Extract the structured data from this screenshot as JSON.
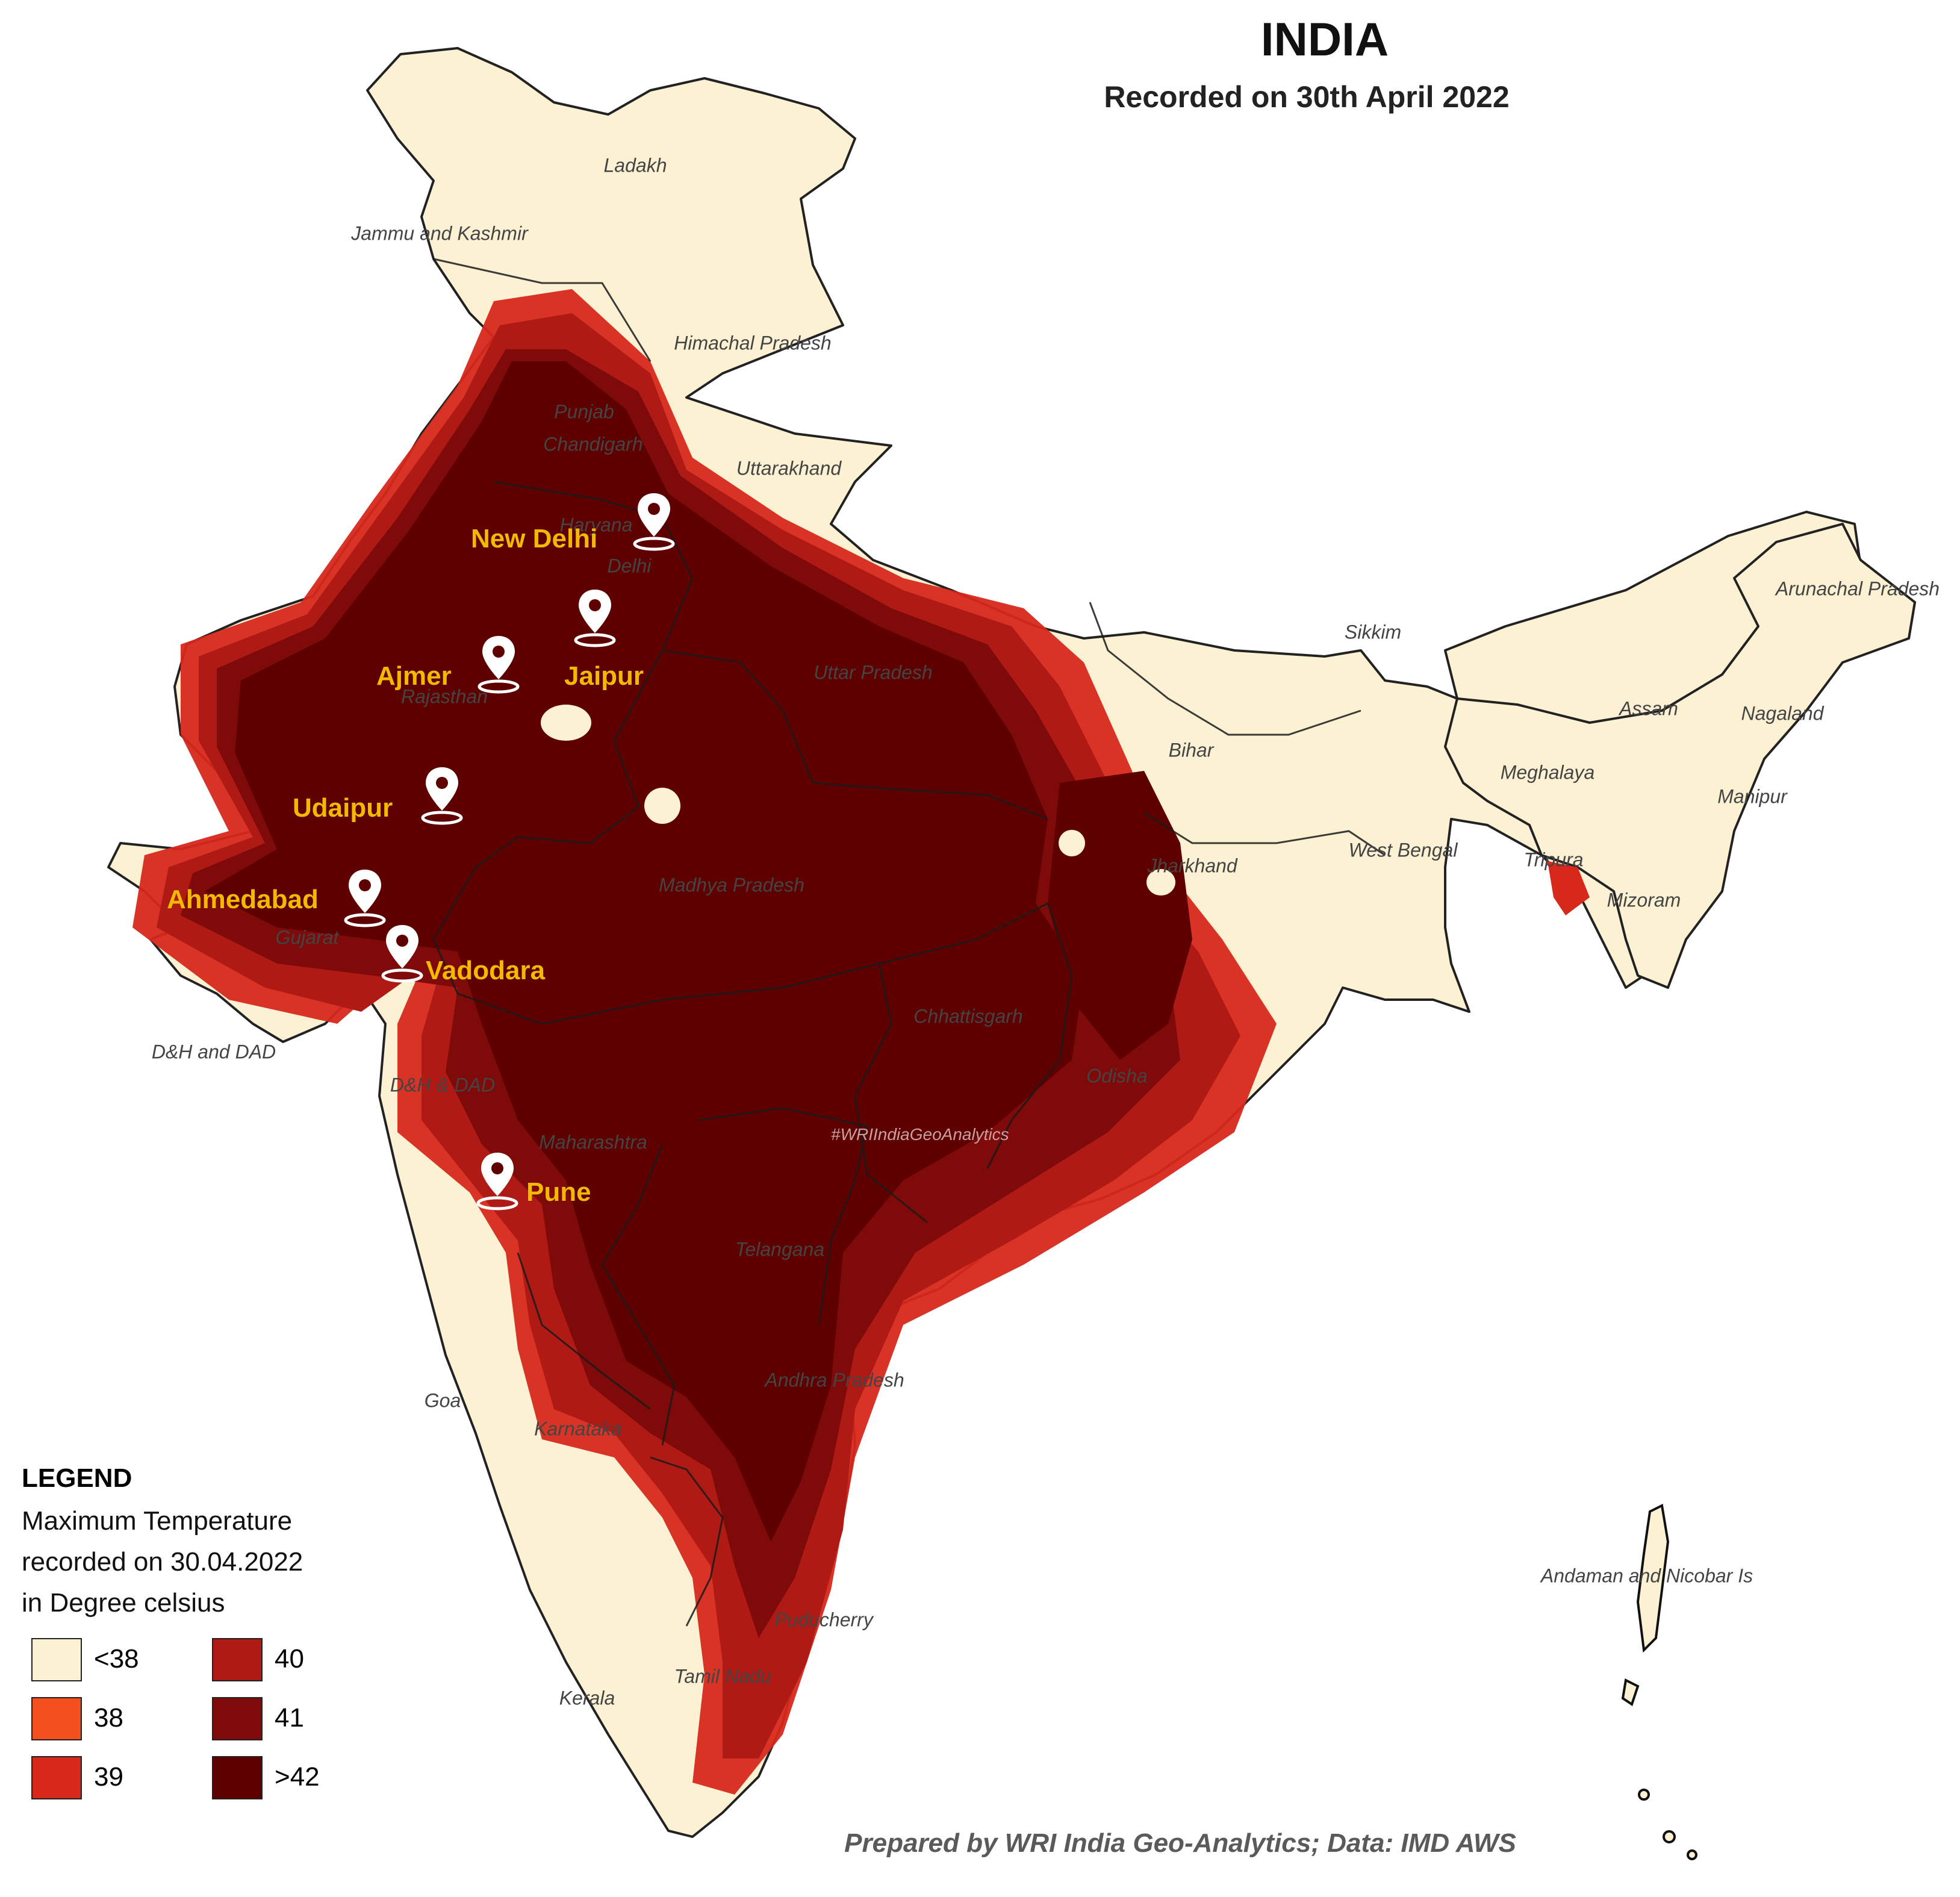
{
  "title": "INDIA",
  "subtitle": "Recorded on 30th April 2022",
  "colors": {
    "below_38": "#fdf1d4",
    "t38": "#f4501e",
    "t39": "#d7281c",
    "t40": "#b01a14",
    "t41": "#7e0a0a",
    "above_42": "#5e0000",
    "city_label": "#f5b800",
    "border": "#222222"
  },
  "state_labels": [
    "Ladakh",
    "Jammu and Kashmir",
    "Himachal Pradesh",
    "Punjab",
    "Chandigarh",
    "Uttarakhand",
    "Haryana",
    "Delhi",
    "Uttar Pradesh",
    "Rajasthan",
    "Sikkim",
    "Arunachal Pradesh",
    "Assam",
    "Nagaland",
    "Bihar",
    "Meghalaya",
    "Manipur",
    "Jharkhand",
    "West Bengal",
    "Tripura",
    "Mizoram",
    "Madhya Pradesh",
    "Gujarat",
    "Chhattisgarh",
    "D&H and DAD",
    "D&H & DAD",
    "Odisha",
    "Maharashtra",
    "Telangana",
    "Andhra Pradesh",
    "Goa",
    "Karnataka",
    "Puducherry",
    "Tamil Nadu",
    "Kerala",
    "Andaman and Nicobar Is"
  ],
  "cities": [
    "New Delhi",
    "Jaipur",
    "Ajmer",
    "Udaipur",
    "Ahmedabad",
    "Vadodara",
    "Pune"
  ],
  "hashtag": "#WRIIndiaGeoAnalytics",
  "legend": {
    "title": "LEGEND",
    "desc_line1": "Maximum Temperature",
    "desc_line2": "recorded on 30.04.2022",
    "desc_line3": "in Degree celsius",
    "items": [
      {
        "label": "<38",
        "color": "#fdf1d4"
      },
      {
        "label": "38",
        "color": "#f4501e"
      },
      {
        "label": "39",
        "color": "#d7281c"
      },
      {
        "label": "40",
        "color": "#b01a14"
      },
      {
        "label": "41",
        "color": "#7e0a0a"
      },
      {
        "label": ">42",
        "color": "#5e0000"
      }
    ]
  },
  "credit": "Prepared by WRI India Geo-Analytics; Data: IMD AWS"
}
